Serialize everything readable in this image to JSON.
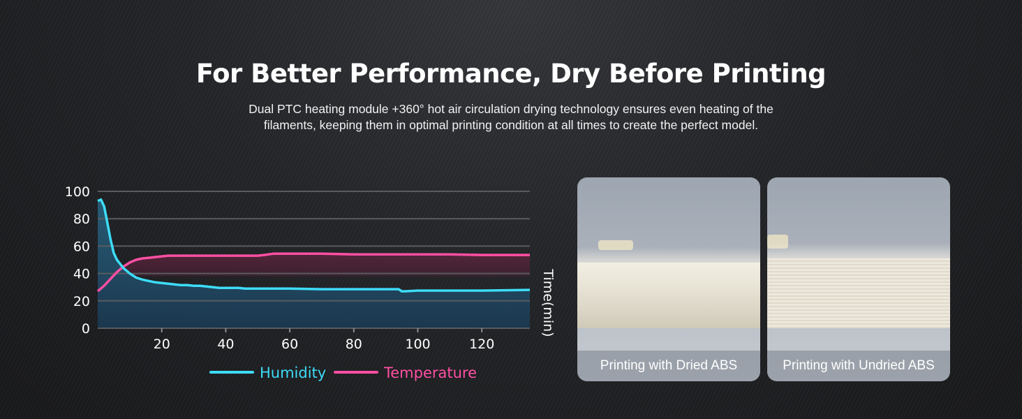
{
  "header": {
    "title": "For Better Performance, Dry Before Printing",
    "subtitle_line1": "Dual PTC heating module +360° hot air circulation drying technology ensures even heating of the",
    "subtitle_line2": "filaments, keeping them in optimal printing condition at all times to create the perfect model."
  },
  "chart_data": {
    "type": "line",
    "xlabel": "Time(min)",
    "ylabel": "",
    "xlim": [
      0,
      135
    ],
    "ylim": [
      0,
      100
    ],
    "x_ticks": [
      20,
      40,
      60,
      80,
      100,
      120
    ],
    "y_ticks": [
      0,
      20,
      40,
      60,
      80,
      100
    ],
    "grid": true,
    "legend_position": "bottom",
    "series": [
      {
        "name": "Humidity",
        "color": "#3ddcf7",
        "x": [
          0,
          1,
          2,
          3,
          4,
          5,
          6,
          8,
          10,
          12,
          14,
          16,
          18,
          20,
          22,
          24,
          26,
          28,
          30,
          32,
          34,
          36,
          38,
          40,
          42,
          44,
          46,
          48,
          50,
          55,
          60,
          70,
          80,
          90,
          94,
          95,
          96,
          100,
          110,
          120,
          135
        ],
        "y": [
          93,
          94,
          89,
          77,
          65,
          55,
          50,
          44,
          40,
          37,
          35.5,
          34.5,
          33.5,
          33,
          32.5,
          32,
          31.5,
          31.5,
          31,
          31,
          30.5,
          30,
          29.5,
          29.5,
          29.5,
          29.5,
          29,
          29,
          29,
          29,
          29,
          28.5,
          28.5,
          28.5,
          28.5,
          27,
          27,
          27.5,
          27.5,
          27.5,
          28
        ]
      },
      {
        "name": "Temperature",
        "color": "#ff4fa3",
        "x": [
          0,
          2,
          4,
          6,
          8,
          10,
          12,
          14,
          16,
          18,
          20,
          22,
          25,
          30,
          40,
          50,
          52,
          55,
          60,
          70,
          80,
          90,
          100,
          110,
          120,
          135
        ],
        "y": [
          27,
          31,
          36,
          41,
          45,
          48,
          50,
          51,
          51.5,
          52,
          52.5,
          53,
          53,
          53,
          53,
          53,
          53.5,
          54.5,
          54.5,
          54.5,
          54,
          54,
          54,
          54,
          53.5,
          53.5
        ]
      }
    ]
  },
  "photos": [
    {
      "caption": "Printing with Dried ABS"
    },
    {
      "caption": "Printing with Undried ABS"
    }
  ]
}
